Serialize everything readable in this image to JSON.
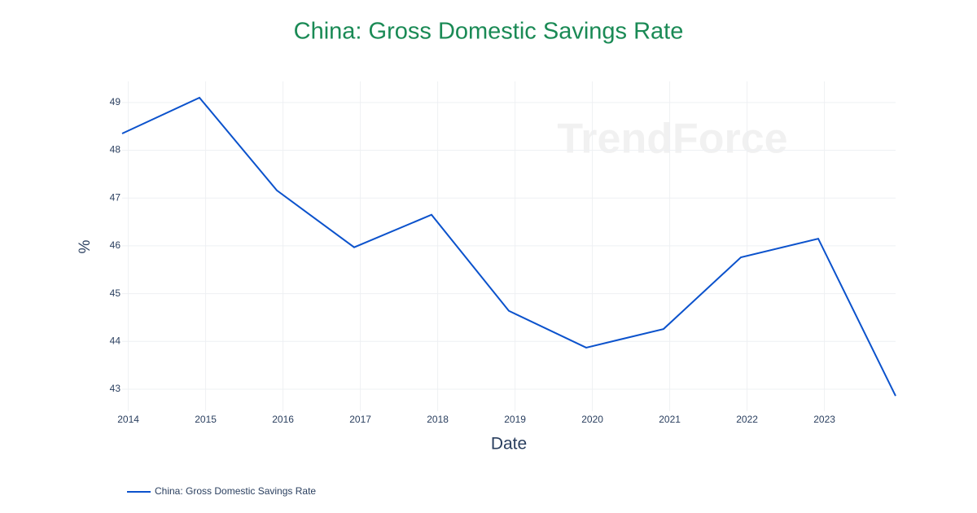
{
  "chart_data": {
    "type": "line",
    "title": "China: Gross Domestic Savings Rate",
    "x_label": "Date",
    "y_label": "%",
    "watermark": "TrendForce",
    "x": [
      2013.92,
      2014.92,
      2015.92,
      2016.92,
      2017.92,
      2018.92,
      2019.92,
      2020.92,
      2021.92,
      2022.92,
      2023.92
    ],
    "series": [
      {
        "name": "China: Gross Domestic Savings Rate",
        "color": "#0b52cc",
        "values": [
          48.35,
          49.1,
          47.16,
          45.97,
          46.65,
          44.64,
          43.87,
          44.26,
          45.76,
          46.15,
          42.86
        ]
      }
    ],
    "xlim": [
      2013.92,
      2023.92
    ],
    "xticks": [
      2014,
      2015,
      2016,
      2017,
      2018,
      2019,
      2020,
      2021,
      2022,
      2023
    ],
    "ylim": [
      42.54,
      49.44
    ],
    "yticks": [
      43,
      44,
      45,
      46,
      47,
      48,
      49
    ],
    "grid": true,
    "legend": "bottom-left"
  }
}
